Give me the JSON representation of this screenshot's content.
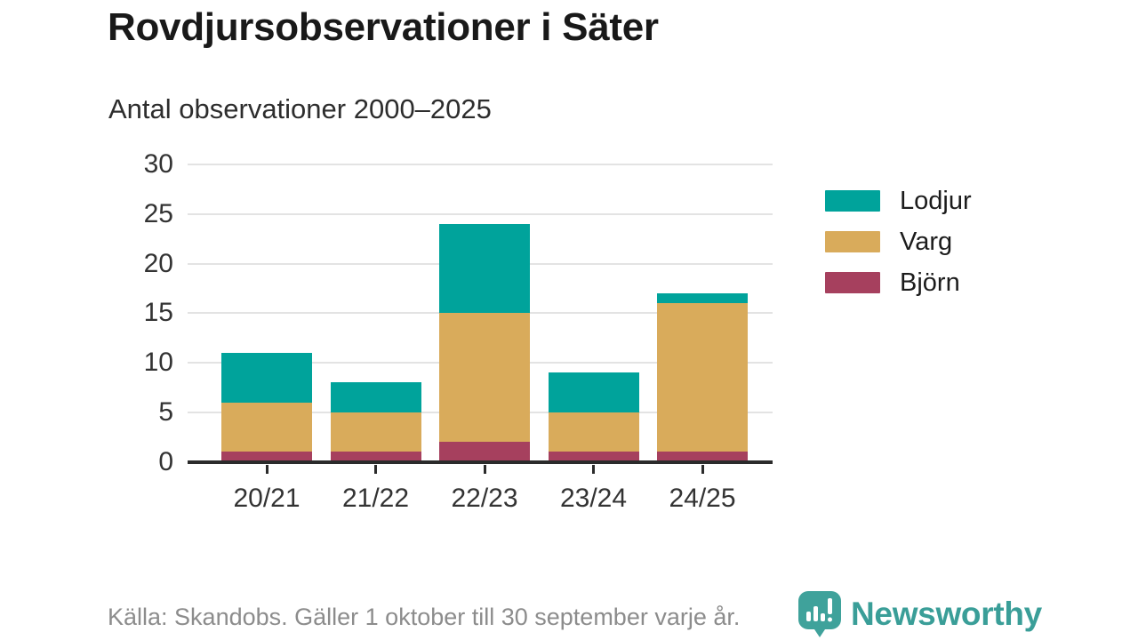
{
  "footer": {
    "source_note": "Källa: Skandobs. Gäller 1 oktober till 30 september varje år."
  },
  "branding": {
    "name": "Newsworthy",
    "logo_icon": "speech-bubble-bar-chart-icon",
    "color": "#3a9e98"
  },
  "colors": {
    "lodjur": "#00a39b",
    "varg": "#d9ab5b",
    "bjorn": "#a6405e",
    "axis": "#2b2b2b",
    "grid": "#e3e3e3",
    "text_dark": "#1c1c1c",
    "text_muted": "#8c8c8c"
  },
  "chart_data": {
    "type": "bar",
    "stacked": true,
    "title": "Rovdjursobservationer i Säter",
    "subtitle": "Antal observationer 2000–2025",
    "categories": [
      "20/21",
      "21/22",
      "22/23",
      "23/24",
      "24/25"
    ],
    "series": [
      {
        "name": "Lodjur",
        "color": "#00a39b",
        "values": [
          5,
          3,
          9,
          4,
          1
        ]
      },
      {
        "name": "Varg",
        "color": "#d9ab5b",
        "values": [
          5,
          4,
          13,
          4,
          15
        ]
      },
      {
        "name": "Björn",
        "color": "#a6405e",
        "values": [
          1,
          1,
          2,
          1,
          1
        ]
      }
    ],
    "stack_order_bottom_to_top": [
      "Björn",
      "Varg",
      "Lodjur"
    ],
    "totals": [
      11,
      8,
      24,
      9,
      17
    ],
    "ylim": [
      0,
      30
    ],
    "yticks": [
      0,
      5,
      10,
      15,
      20,
      25,
      30
    ],
    "xlabel": "",
    "ylabel": "",
    "grid": "horizontal",
    "legend_position": "right"
  }
}
